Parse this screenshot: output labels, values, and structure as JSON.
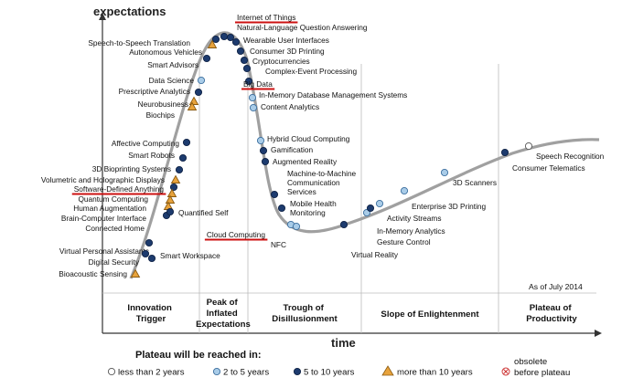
{
  "axes": {
    "y_label": "expectations",
    "x_label": "time"
  },
  "as_of": "As of July 2014",
  "phases": [
    {
      "lines": [
        "Innovation",
        "Trigger"
      ]
    },
    {
      "lines": [
        "Peak of",
        "Inflated",
        "Expectations"
      ]
    },
    {
      "lines": [
        "Trough of",
        "Disillusionment"
      ]
    },
    {
      "lines": [
        "Slope of Enlightenment"
      ]
    },
    {
      "lines": [
        "Plateau of",
        "Productivity"
      ]
    }
  ],
  "legend": {
    "title": "Plateau will be reached in:",
    "items": [
      {
        "key": "lt2",
        "label": "less than 2 years"
      },
      {
        "key": "2to5",
        "label": "2 to 5 years"
      },
      {
        "key": "5to10",
        "label": "5 to 10 years"
      },
      {
        "key": "gt10",
        "label": "more than 10 years"
      },
      {
        "key": "obsolete",
        "label": "obsolete\nbefore plateau"
      }
    ]
  },
  "colors": {
    "curve": "#a0a0a0",
    "lt2": "#ffffff",
    "2to5": "#a9cce8",
    "5to10": "#1d3b6e",
    "gt10": "#e8a33c",
    "underline": "#cc1111"
  },
  "technologies": [
    {
      "name": "Internet of Things",
      "category": "5to10",
      "highlight": true
    },
    {
      "name": "Natural-Language Question Answering",
      "category": "5to10"
    },
    {
      "name": "Wearable User Interfaces",
      "category": "5to10"
    },
    {
      "name": "Consumer 3D Printing",
      "category": "5to10"
    },
    {
      "name": "Cryptocurrencies",
      "category": "5to10"
    },
    {
      "name": "Complex-Event Processing",
      "category": "5to10"
    },
    {
      "name": "Big Data",
      "category": "5to10",
      "highlight": true
    },
    {
      "name": "In-Memory Database Management Systems",
      "category": "2to5"
    },
    {
      "name": "Content Analytics",
      "category": "2to5"
    },
    {
      "name": "Speech-to-Speech Translation",
      "category": "5to10"
    },
    {
      "name": "Autonomous Vehicles",
      "category": "gt10"
    },
    {
      "name": "Smart Advisors",
      "category": "5to10"
    },
    {
      "name": "Data Science",
      "category": "2to5"
    },
    {
      "name": "Prescriptive Analytics",
      "category": "5to10"
    },
    {
      "name": "Neurobusiness",
      "category": "gt10"
    },
    {
      "name": "Biochips",
      "category": "gt10"
    },
    {
      "name": "Affective Computing",
      "category": "5to10"
    },
    {
      "name": "Smart Robots",
      "category": "5to10"
    },
    {
      "name": "3D Bioprinting Systems",
      "category": "5to10"
    },
    {
      "name": "Volumetric and Holographic Displays",
      "category": "gt10"
    },
    {
      "name": "Software-Defined Anything",
      "category": "5to10",
      "highlight": true
    },
    {
      "name": "Quantum Computing",
      "category": "gt10"
    },
    {
      "name": "Human Augmentation",
      "category": "gt10"
    },
    {
      "name": "Brain-Computer Interface",
      "category": "gt10"
    },
    {
      "name": "Connected Home",
      "category": "5to10"
    },
    {
      "name": "Quantified Self",
      "category": "5to10"
    },
    {
      "name": "Virtual Personal Assistants",
      "category": "5to10"
    },
    {
      "name": "Digital Security",
      "category": "5to10"
    },
    {
      "name": "Smart Workspace",
      "category": "5to10"
    },
    {
      "name": "Bioacoustic Sensing",
      "category": "gt10"
    },
    {
      "name": "Hybrid Cloud Computing",
      "category": "2to5"
    },
    {
      "name": "Gamification",
      "category": "5to10"
    },
    {
      "name": "Augmented Reality",
      "category": "5to10"
    },
    {
      "name": "Machine-to-Machine Communication Services",
      "category": "5to10"
    },
    {
      "name": "Mobile Health Monitoring",
      "category": "5to10"
    },
    {
      "name": "Cloud Computing",
      "category": "2to5",
      "highlight": true
    },
    {
      "name": "NFC",
      "category": "2to5"
    },
    {
      "name": "Virtual Reality",
      "category": "5to10"
    },
    {
      "name": "In-Memory Analytics",
      "category": "2to5"
    },
    {
      "name": "Gesture Control",
      "category": "5to10"
    },
    {
      "name": "Activity Streams",
      "category": "2to5"
    },
    {
      "name": "Enterprise 3D Printing",
      "category": "2to5"
    },
    {
      "name": "3D Scanners",
      "category": "2to5"
    },
    {
      "name": "Consumer Telematics",
      "category": "5to10"
    },
    {
      "name": "Speech Recognition",
      "category": "lt2"
    }
  ]
}
